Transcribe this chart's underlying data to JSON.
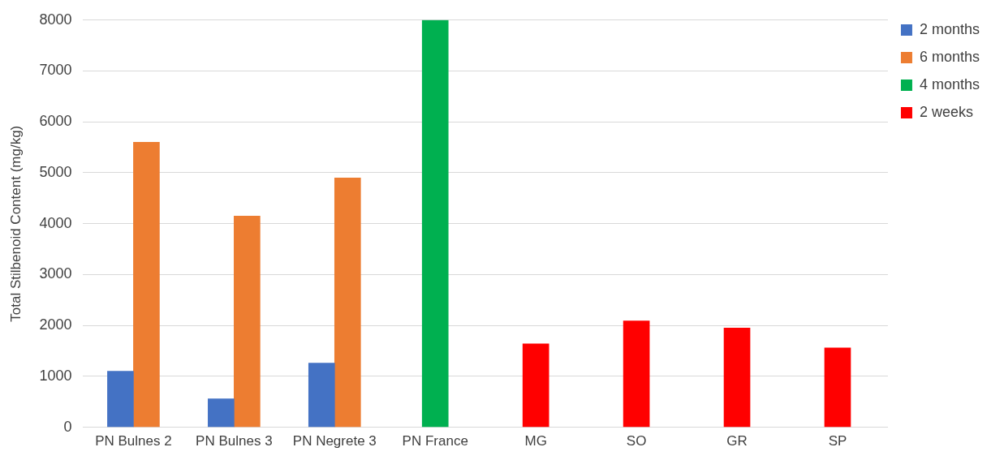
{
  "chart_data": {
    "type": "bar",
    "ylabel": "Total Stilbenoid Content (mg/kg)",
    "categories": [
      "PN Bulnes 2",
      "PN Bulnes 3",
      "PN Negrete 3",
      "PN France",
      "MG",
      "SO",
      "GR",
      "SP"
    ],
    "series": [
      {
        "name": "2 months",
        "color": "#4472c4",
        "values": [
          1100,
          560,
          1260,
          null,
          null,
          null,
          null,
          null
        ]
      },
      {
        "name": "6 months",
        "color": "#ed7d31",
        "values": [
          5600,
          4150,
          4900,
          null,
          null,
          null,
          null,
          null
        ]
      },
      {
        "name": "4 months",
        "color": "#00b050",
        "values": [
          null,
          null,
          null,
          8000,
          null,
          null,
          null,
          null
        ]
      },
      {
        "name": "2 weeks",
        "color": "#ff0000",
        "values": [
          null,
          null,
          null,
          null,
          1640,
          2090,
          1950,
          1560
        ]
      }
    ],
    "ylim": [
      0,
      8000
    ],
    "yticks": [
      0,
      1000,
      2000,
      3000,
      4000,
      5000,
      6000,
      7000,
      8000
    ],
    "grid": "y",
    "legend": "right"
  }
}
